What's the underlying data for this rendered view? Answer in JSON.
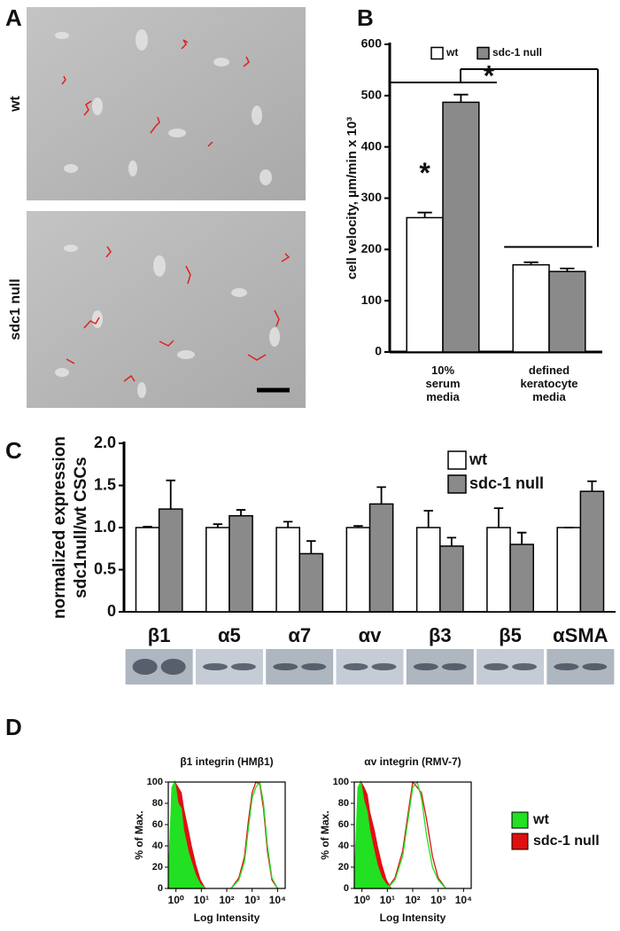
{
  "panel_labels": [
    "A",
    "B",
    "C",
    "D"
  ],
  "micrographs": {
    "labels": [
      "wt",
      "sdc1 null"
    ]
  },
  "flow_legend": [
    {
      "name": "wt",
      "color": "#22e022"
    },
    {
      "name": "sdc-1 null",
      "color": "#e01010"
    }
  ],
  "chart_data": [
    {
      "type": "bar",
      "ylabel": "cell velocity, µm/min x 10³",
      "categories": [
        "10% serum media",
        "defined keratocyte media"
      ],
      "series": [
        {
          "name": "wt",
          "color": "#ffffff",
          "values": [
            262,
            170
          ],
          "errors": [
            10,
            5
          ]
        },
        {
          "name": "sdc-1 null",
          "color": "#8a8a8a",
          "values": [
            487,
            157
          ],
          "errors": [
            15,
            6
          ]
        }
      ],
      "annotations": [
        "*",
        "*"
      ],
      "ylim": [
        0,
        600
      ],
      "yticks": [
        0,
        100,
        200,
        300,
        400,
        500,
        600
      ]
    },
    {
      "type": "bar",
      "ylabel": [
        "normalized expression",
        "sdc1null/wt CSCs"
      ],
      "categories": [
        "β1",
        "α5",
        "α7",
        "αv",
        "β3",
        "β5",
        "αSMA"
      ],
      "series": [
        {
          "name": "wt",
          "color": "#ffffff",
          "values": [
            1.0,
            1.0,
            1.0,
            1.0,
            1.0,
            1.0,
            1.0
          ],
          "errors": [
            0.01,
            0.04,
            0.07,
            0.02,
            0.2,
            0.23,
            0
          ]
        },
        {
          "name": "sdc-1 null",
          "color": "#8a8a8a",
          "values": [
            1.22,
            1.14,
            0.69,
            1.28,
            0.78,
            0.8,
            1.43
          ],
          "errors": [
            0.34,
            0.07,
            0.15,
            0.2,
            0.1,
            0.14,
            0.12
          ]
        }
      ],
      "ylim": [
        0,
        2
      ],
      "yticks": [
        0,
        0.5,
        {
          "value": 1,
          "label": "1.0"
        },
        1.5,
        {
          "value": 2,
          "label": "2.0"
        }
      ]
    },
    {
      "type": "line",
      "title": "β1 integrin (HMβ1)",
      "ylabel": "% of Max.",
      "xlabel": "Log Intensity",
      "xscale": "log",
      "x": [
        0.5,
        0.7,
        0.9,
        1.2,
        1.6,
        2,
        3,
        4,
        6,
        9,
        14,
        null,
        150,
        300,
        500,
        700,
        1000,
        1400,
        2000,
        2800,
        4000,
        6000,
        10000
      ],
      "series": [
        {
          "color": "#e01010",
          "values": [
            0,
            90,
            100,
            95,
            90,
            75,
            55,
            40,
            22,
            8,
            0,
            null,
            0,
            10,
            30,
            62,
            90,
            100,
            98,
            75,
            35,
            8,
            0
          ]
        },
        {
          "color": "#22e022",
          "values": [
            0,
            95,
            100,
            80,
            75,
            55,
            35,
            25,
            12,
            4,
            0,
            null,
            0,
            8,
            25,
            55,
            85,
            95,
            100,
            80,
            40,
            10,
            0
          ]
        }
      ],
      "xlim": [
        0.5,
        20000
      ],
      "xticks": [
        {
          "value": 1,
          "label": "10⁰"
        },
        {
          "value": 10,
          "label": "10¹"
        },
        {
          "value": 100,
          "label": "10²"
        },
        {
          "value": 1000,
          "label": "10³"
        },
        {
          "value": 10000,
          "label": "10⁴"
        }
      ],
      "ylim": [
        0,
        100
      ],
      "yticks": [
        0,
        20,
        40,
        60,
        80,
        100
      ]
    },
    {
      "type": "line",
      "title": "αv integrin (RMV-7)",
      "ylabel": "% of Max.",
      "xlabel": "Log Intensity",
      "xscale": "log",
      "x": [
        0.5,
        0.7,
        0.9,
        1.2,
        1.6,
        2,
        3,
        4,
        6,
        9,
        14,
        null,
        10,
        20,
        40,
        70,
        100,
        150,
        220,
        350,
        600,
        1000,
        2000
      ],
      "series": [
        {
          "color": "#e01010",
          "values": [
            0,
            88,
            100,
            95,
            88,
            72,
            55,
            40,
            22,
            8,
            0,
            null,
            0,
            10,
            35,
            75,
            100,
            95,
            90,
            65,
            30,
            10,
            0
          ]
        },
        {
          "color": "#22e022",
          "values": [
            0,
            95,
            100,
            82,
            72,
            55,
            35,
            22,
            10,
            4,
            0,
            null,
            0,
            8,
            30,
            70,
            95,
            100,
            85,
            50,
            20,
            8,
            0
          ]
        }
      ],
      "xlim": [
        0.5,
        20000
      ],
      "xticks": [
        {
          "value": 1,
          "label": "10⁰"
        },
        {
          "value": 10,
          "label": "10¹"
        },
        {
          "value": 100,
          "label": "10²"
        },
        {
          "value": 1000,
          "label": "10³"
        },
        {
          "value": 10000,
          "label": "10⁴"
        }
      ],
      "ylim": [
        0,
        100
      ],
      "yticks": [
        0,
        20,
        40,
        60,
        80,
        100
      ]
    }
  ]
}
